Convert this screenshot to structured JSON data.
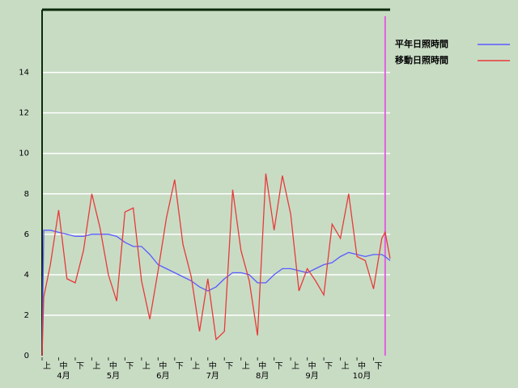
{
  "chart_data": {
    "type": "line",
    "x": [
      0,
      0.1,
      0.5,
      1,
      1.5,
      2,
      2.5,
      3,
      3.5,
      4,
      4.5,
      5,
      5.5,
      6,
      6.5,
      7,
      7.5,
      8,
      8.5,
      9,
      9.5,
      10,
      10.5,
      11,
      11.5,
      12,
      12.5,
      13,
      13.5,
      14,
      14.5,
      15,
      15.5,
      16,
      16.5,
      17,
      17.5,
      18,
      18.5,
      19,
      19.5,
      20,
      20.5,
      20.7,
      21
    ],
    "series": [
      {
        "name": "平年日照時間",
        "color": "#5a5aff",
        "values": [
          0,
          6.2,
          6.2,
          6.1,
          6.0,
          5.9,
          5.9,
          6.0,
          6.0,
          6.0,
          5.9,
          5.6,
          5.4,
          5.4,
          5.0,
          4.5,
          4.3,
          4.1,
          3.9,
          3.7,
          3.4,
          3.2,
          3.4,
          3.8,
          4.1,
          4.1,
          4.0,
          3.6,
          3.6,
          4.0,
          4.3,
          4.3,
          4.2,
          4.1,
          4.3,
          4.5,
          4.6,
          4.9,
          5.1,
          5.0,
          4.9,
          5.0,
          5.0,
          4.9,
          4.7
        ]
      },
      {
        "name": "移動日照時間",
        "color": "#e83a3a",
        "values": [
          0,
          2.9,
          4.5,
          7.2,
          3.8,
          3.6,
          5.2,
          8.0,
          6.3,
          4.0,
          2.7,
          7.1,
          7.3,
          3.7,
          1.8,
          4.2,
          6.8,
          8.7,
          5.5,
          3.9,
          1.2,
          3.8,
          0.8,
          1.2,
          8.2,
          5.2,
          3.7,
          1.0,
          9.0,
          6.2,
          8.9,
          7.0,
          3.2,
          4.3,
          3.7,
          3.0,
          6.5,
          5.8,
          8.0,
          4.9,
          4.7,
          3.3,
          5.8,
          6.1,
          4.8
        ]
      }
    ],
    "xlim": [
      0,
      21
    ],
    "xticks": [
      {
        "value": 0,
        "label": "上"
      },
      {
        "value": 1,
        "label": "中"
      },
      {
        "value": 2,
        "label": "下"
      },
      {
        "value": 3,
        "label": "上"
      },
      {
        "value": 4,
        "label": "中"
      },
      {
        "value": 5,
        "label": "下"
      },
      {
        "value": 6,
        "label": "上"
      },
      {
        "value": 7,
        "label": "中"
      },
      {
        "value": 8,
        "label": "下"
      },
      {
        "value": 9,
        "label": "上"
      },
      {
        "value": 10,
        "label": "中"
      },
      {
        "value": 11,
        "label": "下"
      },
      {
        "value": 12,
        "label": "上"
      },
      {
        "value": 13,
        "label": "中"
      },
      {
        "value": 14,
        "label": "下"
      },
      {
        "value": 15,
        "label": "上"
      },
      {
        "value": 16,
        "label": "中"
      },
      {
        "value": 17,
        "label": "下"
      },
      {
        "value": 18,
        "label": "上"
      },
      {
        "value": 19,
        "label": "中"
      },
      {
        "value": 20,
        "label": "下"
      }
    ],
    "months": [
      {
        "value": 1,
        "label": "4月"
      },
      {
        "value": 4,
        "label": "5月"
      },
      {
        "value": 7,
        "label": "6月"
      },
      {
        "value": 10,
        "label": "7月"
      },
      {
        "value": 13,
        "label": "8月"
      },
      {
        "value": 16,
        "label": "9月"
      },
      {
        "value": 19,
        "label": "10月"
      }
    ],
    "current_x": 20.7,
    "ylim": [
      0,
      17.1
    ],
    "yticks": [
      0,
      2,
      4,
      6,
      8,
      10,
      12,
      14
    ],
    "grid": true
  }
}
